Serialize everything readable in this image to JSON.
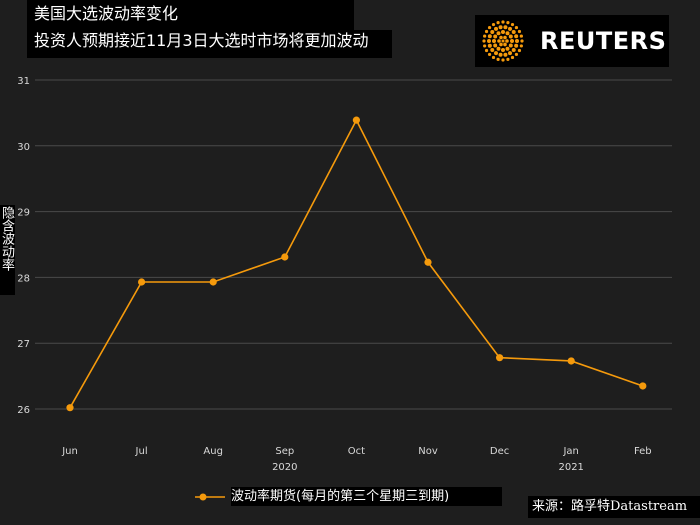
{
  "header": {
    "title": "美国大选波动率变化",
    "subtitle": "投资人预期接近11月3日大选时市场将更加波动"
  },
  "brand": {
    "name": "REUTERS"
  },
  "footer": {
    "source": "来源：路孚特Datastream"
  },
  "colors": {
    "background": "#1e1e1e",
    "line": "#f59a0c",
    "gridline": "#4a4a4a",
    "text": "#ffffff"
  },
  "chart_data": {
    "type": "line",
    "title": "美国大选波动率变化",
    "subtitle": "投资人预期接近11月3日大选时市场将更加波动",
    "ylabel": "隐含波动率",
    "xlabel": "",
    "categories": [
      "Jun",
      "Jul",
      "Aug",
      "Sep",
      "Oct",
      "Nov",
      "Dec",
      "Jan",
      "Feb"
    ],
    "year_labels": [
      {
        "under": "Sep",
        "text": "2020"
      },
      {
        "under": "Jan",
        "text": "2021"
      }
    ],
    "series": [
      {
        "name": "波动率期货(每月的第三个星期三到期)",
        "values": [
          26.02,
          27.93,
          27.93,
          28.31,
          30.39,
          28.23,
          26.78,
          26.73,
          26.35
        ]
      }
    ],
    "ylim": [
      25.8,
      31
    ],
    "yticks": [
      26,
      27,
      28,
      29,
      30,
      31
    ],
    "grid": true,
    "legend_position": "bottom"
  }
}
